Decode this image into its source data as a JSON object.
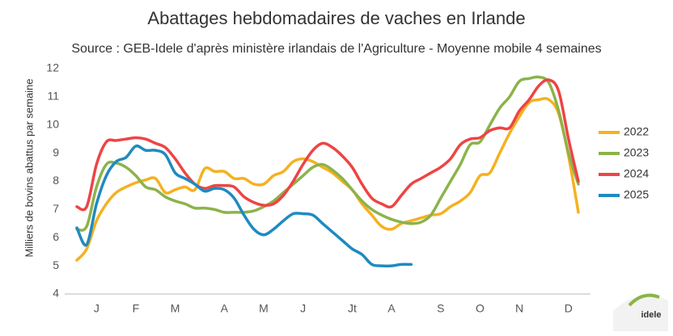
{
  "chart_data": {
    "type": "line",
    "title": "Abattages hebdomadaires de vaches en Irlande",
    "subtitle": "Source : GEB-Idele d'après ministère irlandais de l'Agriculture - Moyenne mobile 4 semaines",
    "y_label": "Milliers de bovins abattus par semaine",
    "logo_text": "idele",
    "categories": [
      null,
      null,
      "J",
      null,
      null,
      null,
      "F",
      null,
      null,
      null,
      "M",
      null,
      null,
      null,
      null,
      "A",
      null,
      null,
      null,
      "M",
      null,
      null,
      null,
      "J",
      null,
      null,
      null,
      null,
      "Jt",
      null,
      null,
      null,
      "A",
      null,
      null,
      null,
      null,
      "S",
      null,
      null,
      null,
      "O",
      null,
      null,
      null,
      "N",
      null,
      null,
      null,
      null,
      "D",
      null
    ],
    "series": [
      {
        "name": "2022",
        "color": "#f5b120",
        "values": [
          5.2,
          5.6,
          6.6,
          7.2,
          7.6,
          7.8,
          7.95,
          8.05,
          8.1,
          7.6,
          7.7,
          7.8,
          7.7,
          8.45,
          8.35,
          8.35,
          8.1,
          8.1,
          7.9,
          7.9,
          8.2,
          8.35,
          8.7,
          8.8,
          8.7,
          8.5,
          8.3,
          8.0,
          7.7,
          7.2,
          6.8,
          6.4,
          6.3,
          6.5,
          6.6,
          6.7,
          6.8,
          6.85,
          7.1,
          7.3,
          7.6,
          8.2,
          8.3,
          9.0,
          9.7,
          10.3,
          10.8,
          10.9,
          10.9,
          10.4,
          8.9,
          6.9
        ]
      },
      {
        "name": "2023",
        "color": "#8cb34a",
        "values": [
          6.3,
          6.4,
          7.8,
          8.6,
          8.65,
          8.5,
          8.2,
          7.8,
          7.7,
          7.45,
          7.3,
          7.2,
          7.05,
          7.05,
          7.0,
          6.9,
          6.9,
          6.9,
          6.95,
          7.1,
          7.3,
          7.6,
          7.9,
          8.2,
          8.5,
          8.6,
          8.4,
          8.1,
          7.7,
          7.3,
          7.0,
          6.8,
          6.65,
          6.55,
          6.5,
          6.55,
          6.8,
          7.4,
          8.0,
          8.6,
          9.3,
          9.4,
          10.0,
          10.6,
          11.0,
          11.55,
          11.65,
          11.7,
          11.5,
          10.5,
          9.0,
          7.9
        ]
      },
      {
        "name": "2024",
        "color": "#ee4444",
        "values": [
          7.1,
          7.1,
          8.6,
          9.4,
          9.45,
          9.5,
          9.55,
          9.5,
          9.35,
          9.2,
          8.8,
          8.3,
          7.9,
          7.75,
          7.85,
          7.85,
          7.8,
          7.45,
          7.25,
          7.15,
          7.2,
          7.5,
          8.0,
          8.6,
          9.1,
          9.35,
          9.2,
          8.9,
          8.5,
          7.9,
          7.4,
          7.2,
          7.1,
          7.5,
          7.9,
          8.1,
          8.3,
          8.5,
          8.8,
          9.3,
          9.5,
          9.55,
          9.8,
          9.9,
          9.9,
          10.5,
          10.9,
          11.4,
          11.6,
          11.2,
          9.5,
          8.0
        ]
      },
      {
        "name": "2025",
        "color": "#1f8ac0",
        "values": [
          6.35,
          5.75,
          7.2,
          8.2,
          8.7,
          8.85,
          9.25,
          9.1,
          9.1,
          8.95,
          8.3,
          8.1,
          7.9,
          7.65,
          7.75,
          7.7,
          7.4,
          6.8,
          6.3,
          6.1,
          6.3,
          6.6,
          6.85,
          6.85,
          6.8,
          6.5,
          6.2,
          5.9,
          5.6,
          5.4,
          5.05,
          5.0,
          5.0,
          5.05,
          5.05,
          null,
          null,
          null,
          null,
          null,
          null,
          null,
          null,
          null,
          null,
          null,
          null,
          null,
          null,
          null,
          null,
          null
        ]
      }
    ],
    "ylim": [
      4,
      12
    ],
    "yticks": [
      4,
      5,
      6,
      7,
      8,
      9,
      10,
      11,
      12
    ],
    "grid": false,
    "legend": "right"
  }
}
